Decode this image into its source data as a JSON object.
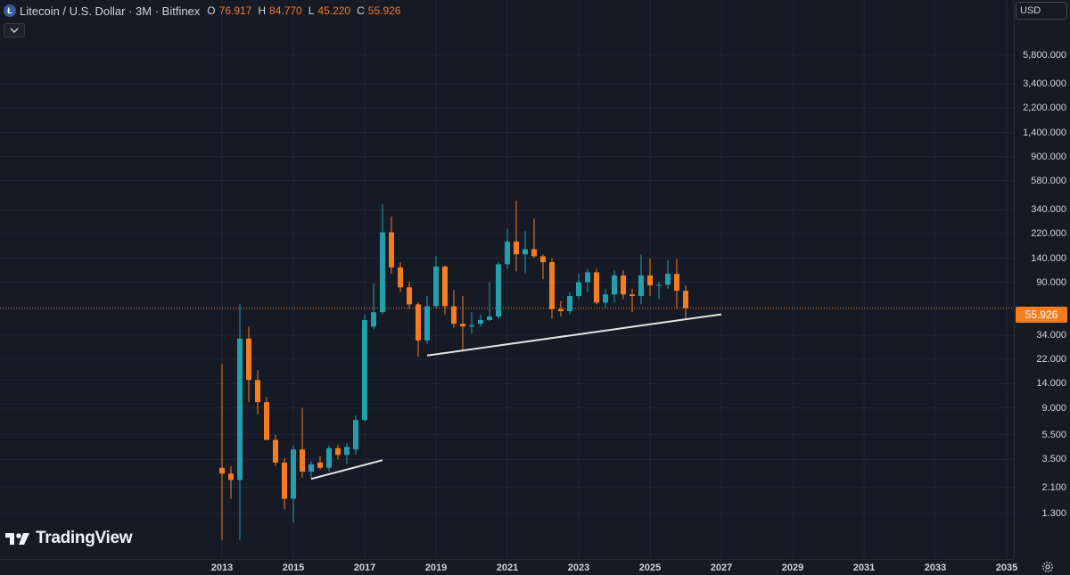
{
  "header": {
    "symbol_title": "Litecoin / U.S. Dollar · 3M · Bitfinex",
    "icon_letter": "Ł",
    "open_label": "O",
    "open_value": "76.917",
    "high_label": "H",
    "high_value": "84.770",
    "low_label": "L",
    "low_value": "45.220",
    "close_label": "C",
    "close_value": "55.926"
  },
  "currency": "USD",
  "last_price": "55.926",
  "branding": "TradingView",
  "colors": {
    "up": "#22a0ad",
    "down": "#f57c1f",
    "background": "#161a25",
    "grid": "#232733",
    "trendline": "#e6e6e6",
    "last_price_line": "#f57c1f"
  },
  "chart_data": {
    "type": "candlestick",
    "title": "Litecoin / U.S. Dollar · 3M · Bitfinex",
    "scale": "log",
    "price_ticks": [
      1.3,
      2.1,
      3.5,
      5.5,
      9,
      14,
      22,
      34,
      90,
      140,
      220,
      340,
      580,
      900,
      1400,
      2200,
      3400,
      5800
    ],
    "price_tick_labels": [
      "1.300",
      "2.100",
      "3.500",
      "5.500",
      "9.000",
      "14.000",
      "22.000",
      "34.000",
      "90.000",
      "140.000",
      "220.000",
      "340.000",
      "580.000",
      "900.000",
      "1,400.000",
      "2,200.000",
      "3,400.000",
      "5,800.000"
    ],
    "time_ticks": [
      "2013",
      "2015",
      "2017",
      "2019",
      "2021",
      "2023",
      "2025",
      "2027",
      "2029",
      "2031",
      "2033",
      "2035"
    ],
    "time_tick_years": [
      2013,
      2015,
      2017,
      2019,
      2021,
      2023,
      2025,
      2027,
      2029,
      2031,
      2033,
      2035
    ],
    "candles": [
      {
        "t": 2013.0,
        "o": 3.0,
        "h": 20,
        "l": 0.8,
        "c": 2.7
      },
      {
        "t": 2013.25,
        "o": 2.7,
        "h": 3.1,
        "l": 1.7,
        "c": 2.4
      },
      {
        "t": 2013.5,
        "o": 2.4,
        "h": 60,
        "l": 0.8,
        "c": 32
      },
      {
        "t": 2013.75,
        "o": 32,
        "h": 40,
        "l": 10,
        "c": 15
      },
      {
        "t": 2014.0,
        "o": 15,
        "h": 18,
        "l": 8,
        "c": 10
      },
      {
        "t": 2014.25,
        "o": 10,
        "h": 11,
        "l": 5,
        "c": 5
      },
      {
        "t": 2014.5,
        "o": 5,
        "h": 5.5,
        "l": 3.1,
        "c": 3.3
      },
      {
        "t": 2014.75,
        "o": 3.3,
        "h": 3.6,
        "l": 1.4,
        "c": 1.7
      },
      {
        "t": 2015.0,
        "o": 1.7,
        "h": 4.5,
        "l": 1.1,
        "c": 4.2
      },
      {
        "t": 2015.25,
        "o": 4.2,
        "h": 9,
        "l": 2.5,
        "c": 2.8
      },
      {
        "t": 2015.5,
        "o": 2.8,
        "h": 3.4,
        "l": 2.5,
        "c": 3.2
      },
      {
        "t": 2015.75,
        "o": 3.3,
        "h": 3.7,
        "l": 2.9,
        "c": 3.0
      },
      {
        "t": 2016.0,
        "o": 3.0,
        "h": 4.5,
        "l": 2.8,
        "c": 4.3
      },
      {
        "t": 2016.25,
        "o": 4.3,
        "h": 4.6,
        "l": 3.5,
        "c": 3.8
      },
      {
        "t": 2016.5,
        "o": 3.8,
        "h": 4.7,
        "l": 3.2,
        "c": 4.4
      },
      {
        "t": 2016.75,
        "o": 4.2,
        "h": 7.8,
        "l": 3.8,
        "c": 7.2
      },
      {
        "t": 2017.0,
        "o": 7.2,
        "h": 50,
        "l": 7.0,
        "c": 45
      },
      {
        "t": 2017.25,
        "o": 40,
        "h": 88,
        "l": 38,
        "c": 52
      },
      {
        "t": 2017.5,
        "o": 52,
        "h": 375,
        "l": 50,
        "c": 225
      },
      {
        "t": 2017.75,
        "o": 225,
        "h": 300,
        "l": 105,
        "c": 118
      },
      {
        "t": 2018.0,
        "o": 118,
        "h": 130,
        "l": 75,
        "c": 82
      },
      {
        "t": 2018.25,
        "o": 82,
        "h": 90,
        "l": 55,
        "c": 60
      },
      {
        "t": 2018.5,
        "o": 60,
        "h": 62,
        "l": 23,
        "c": 31
      },
      {
        "t": 2018.75,
        "o": 31,
        "h": 70,
        "l": 29,
        "c": 58
      },
      {
        "t": 2019.0,
        "o": 58,
        "h": 145,
        "l": 56,
        "c": 120
      },
      {
        "t": 2019.25,
        "o": 120,
        "h": 122,
        "l": 50,
        "c": 58
      },
      {
        "t": 2019.5,
        "o": 58,
        "h": 78,
        "l": 39,
        "c": 42
      },
      {
        "t": 2019.75,
        "o": 42,
        "h": 70,
        "l": 26,
        "c": 40
      },
      {
        "t": 2020.0,
        "o": 40,
        "h": 52,
        "l": 35,
        "c": 41
      },
      {
        "t": 2020.25,
        "o": 42,
        "h": 50,
        "l": 40,
        "c": 45
      },
      {
        "t": 2020.5,
        "o": 45,
        "h": 90,
        "l": 44,
        "c": 48
      },
      {
        "t": 2020.75,
        "o": 48,
        "h": 130,
        "l": 46,
        "c": 125
      },
      {
        "t": 2021.0,
        "o": 125,
        "h": 240,
        "l": 115,
        "c": 190
      },
      {
        "t": 2021.25,
        "o": 190,
        "h": 400,
        "l": 110,
        "c": 150
      },
      {
        "t": 2021.5,
        "o": 150,
        "h": 230,
        "l": 105,
        "c": 165
      },
      {
        "t": 2021.75,
        "o": 165,
        "h": 290,
        "l": 140,
        "c": 145
      },
      {
        "t": 2022.0,
        "o": 145,
        "h": 150,
        "l": 95,
        "c": 130
      },
      {
        "t": 2022.25,
        "o": 130,
        "h": 140,
        "l": 46,
        "c": 55
      },
      {
        "t": 2022.5,
        "o": 55,
        "h": 64,
        "l": 48,
        "c": 53
      },
      {
        "t": 2022.75,
        "o": 53,
        "h": 75,
        "l": 50,
        "c": 70
      },
      {
        "t": 2023.0,
        "o": 70,
        "h": 105,
        "l": 66,
        "c": 90
      },
      {
        "t": 2023.25,
        "o": 90,
        "h": 115,
        "l": 75,
        "c": 108
      },
      {
        "t": 2023.5,
        "o": 108,
        "h": 115,
        "l": 60,
        "c": 62
      },
      {
        "t": 2023.75,
        "o": 62,
        "h": 80,
        "l": 56,
        "c": 72
      },
      {
        "t": 2024.0,
        "o": 72,
        "h": 112,
        "l": 62,
        "c": 102
      },
      {
        "t": 2024.25,
        "o": 102,
        "h": 112,
        "l": 66,
        "c": 72
      },
      {
        "t": 2024.5,
        "o": 72,
        "h": 80,
        "l": 52,
        "c": 70
      },
      {
        "t": 2024.75,
        "o": 70,
        "h": 150,
        "l": 60,
        "c": 102
      },
      {
        "t": 2025.0,
        "o": 102,
        "h": 140,
        "l": 70,
        "c": 85
      },
      {
        "t": 2025.25,
        "o": 85,
        "h": 90,
        "l": 66,
        "c": 86
      },
      {
        "t": 2025.5,
        "o": 86,
        "h": 135,
        "l": 80,
        "c": 105
      },
      {
        "t": 2025.75,
        "o": 105,
        "h": 138,
        "l": 55,
        "c": 77
      },
      {
        "t": 2026.0,
        "o": 76.917,
        "h": 84.77,
        "l": 45.22,
        "c": 55.926
      }
    ],
    "trendlines": [
      {
        "t1": 2015.5,
        "p1": 2.45,
        "t2": 2017.5,
        "p2": 3.45
      },
      {
        "t1": 2018.75,
        "p1": 23.5,
        "t2": 2027.0,
        "p2": 50
      }
    ],
    "last_price": 55.926
  }
}
